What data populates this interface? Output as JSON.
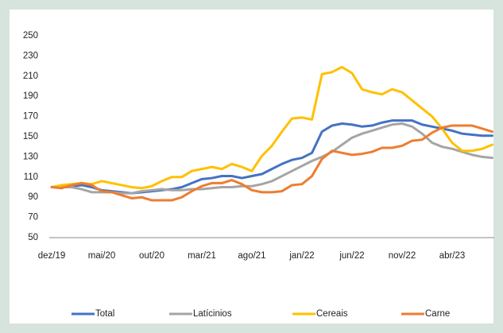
{
  "chart_data": {
    "type": "line",
    "categories": [
      "dez/19",
      null,
      null,
      null,
      null,
      "mai/20",
      null,
      null,
      null,
      null,
      "out/20",
      null,
      null,
      null,
      null,
      "mar/21",
      null,
      null,
      null,
      null,
      "ago/21",
      null,
      null,
      null,
      null,
      "jan/22",
      null,
      null,
      null,
      null,
      "jun/22",
      null,
      null,
      null,
      null,
      "nov/22",
      null,
      null,
      null,
      null,
      "abr/23",
      null,
      null,
      null,
      null
    ],
    "series": [
      {
        "name": "Total",
        "color": "#4472c4",
        "values": [
          100,
          101,
          101,
          102,
          100,
          97,
          96,
          95,
          94,
          95,
          96,
          97,
          98,
          100,
          104,
          108,
          109,
          111,
          111,
          109,
          111,
          113,
          118,
          123,
          127,
          129,
          134,
          155,
          161,
          163,
          162,
          160,
          161,
          164,
          166,
          166,
          166,
          162,
          160,
          158,
          156,
          153,
          152,
          151,
          151
        ]
      },
      {
        "name": "Latícinios",
        "color": "#a5a5a5",
        "values": [
          100,
          100,
          100,
          98,
          95,
          95,
          95,
          94,
          94,
          96,
          97,
          98,
          97,
          97,
          98,
          98,
          99,
          100,
          100,
          101,
          101,
          103,
          106,
          111,
          116,
          121,
          126,
          130,
          135,
          142,
          149,
          153,
          156,
          159,
          162,
          163,
          160,
          153,
          144,
          140,
          138,
          135,
          132,
          130,
          129
        ]
      },
      {
        "name": "Cereais",
        "color": "#ffc000",
        "values": [
          100,
          102,
          103,
          104,
          103,
          106,
          104,
          102,
          100,
          99,
          101,
          106,
          110,
          110,
          116,
          118,
          120,
          118,
          123,
          120,
          116,
          131,
          141,
          155,
          168,
          169,
          167,
          212,
          214,
          219,
          213,
          197,
          194,
          192,
          197,
          194,
          186,
          178,
          170,
          158,
          144,
          136,
          136,
          138,
          142
        ]
      },
      {
        "name": "Carne",
        "color": "#ed7d31",
        "values": [
          100,
          99,
          102,
          104,
          102,
          96,
          95,
          92,
          89,
          90,
          87,
          87,
          87,
          90,
          96,
          101,
          104,
          104,
          107,
          103,
          97,
          95,
          95,
          96,
          102,
          103,
          111,
          128,
          136,
          134,
          132,
          133,
          135,
          139,
          139,
          141,
          146,
          147,
          154,
          159,
          161,
          161,
          161,
          158,
          155
        ]
      }
    ],
    "ylim": [
      50,
      250
    ],
    "yticks": [
      50,
      70,
      90,
      110,
      130,
      150,
      170,
      190,
      210,
      230,
      250
    ],
    "grid": false,
    "legend": "bottom"
  }
}
